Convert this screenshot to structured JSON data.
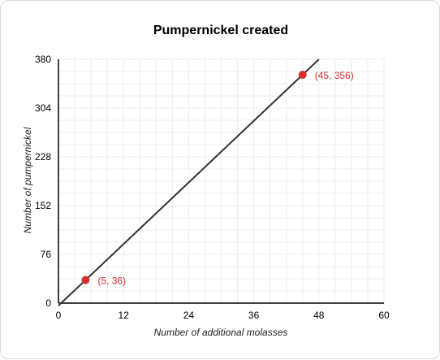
{
  "chart_data": {
    "type": "line",
    "title": "Pumpernickel created",
    "xlabel": "Number of additional molasses",
    "ylabel": "Number of pumpernickel",
    "xlim": [
      0,
      60
    ],
    "ylim": [
      0,
      380
    ],
    "x_ticks": [
      0,
      12,
      24,
      36,
      48,
      60
    ],
    "y_ticks": [
      0,
      76,
      152,
      228,
      304,
      380
    ],
    "grid": true,
    "line": {
      "x": [
        0,
        48
      ],
      "y": [
        -4,
        380
      ]
    },
    "points": [
      {
        "x": 5,
        "y": 36,
        "label": "(5, 36)"
      },
      {
        "x": 45,
        "y": 356,
        "label": "(45, 356)"
      }
    ],
    "colors": {
      "line": "#333333",
      "point": "#d32f2f",
      "grid": "#ececec",
      "axis": "#000000"
    }
  }
}
